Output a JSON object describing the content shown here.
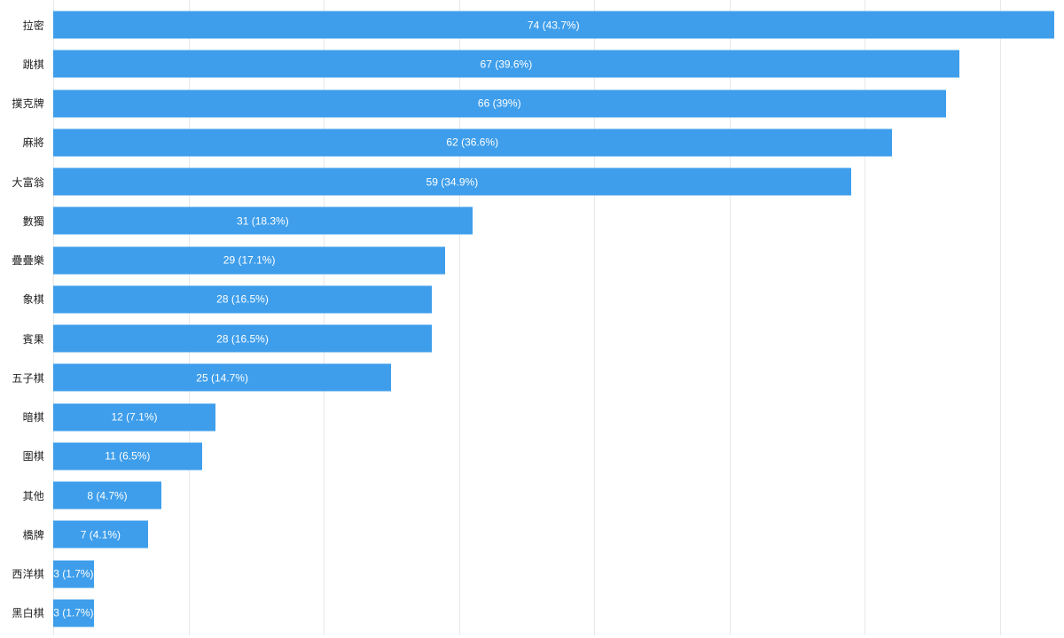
{
  "chart_data": {
    "type": "bar",
    "orientation": "horizontal",
    "title": "",
    "categories": [
      "拉密",
      "跳棋",
      "撲克牌",
      "麻將",
      "大富翁",
      "數獨",
      "疊疊樂",
      "象棋",
      "賓果",
      "五子棋",
      "暗棋",
      "圍棋",
      "其他",
      "橋牌",
      "西洋棋",
      "黑白棋"
    ],
    "values": [
      74,
      67,
      66,
      62,
      59,
      31,
      29,
      28,
      28,
      25,
      12,
      11,
      8,
      7,
      3,
      3
    ],
    "percents": [
      43.7,
      39.6,
      39,
      36.6,
      34.9,
      18.3,
      17.1,
      16.5,
      16.5,
      14.7,
      7.1,
      6.5,
      4.7,
      4.1,
      1.7,
      1.7
    ],
    "bar_labels": [
      "74 (43.7%)",
      "67 (39.6%)",
      "66 (39%)",
      "62 (36.6%)",
      "59 (34.9%)",
      "31 (18.3%)",
      "29 (17.1%)",
      "28 (16.5%)",
      "28 (16.5%)",
      "25 (14.7%)",
      "12 (7.1%)",
      "11 (6.5%)",
      "8 (4.7%)",
      "7 (4.1%)",
      "3 (1.7%)",
      "3 (1.7%)"
    ],
    "xlabel": "",
    "ylabel": "",
    "xlim": [
      0,
      74.8
    ],
    "gridline_values": [
      0,
      10,
      20,
      30,
      40,
      50,
      60,
      70
    ],
    "gridline_interval": 10,
    "grid": "vertical-only",
    "legend": "none",
    "axis_tick_labels_visible": false,
    "bar_color": "#3e9eeb",
    "gridline_color": "#e8e8e8",
    "category_label_color": "#212121",
    "value_label_color": "#ffffff"
  }
}
